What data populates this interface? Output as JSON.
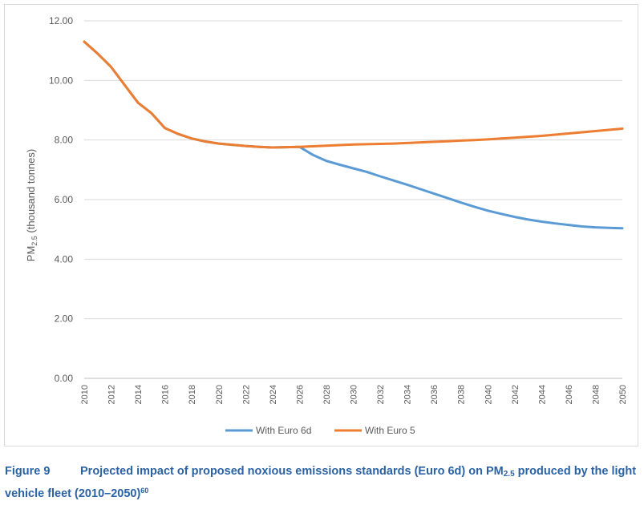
{
  "chart_data": {
    "type": "line",
    "ylabel_main": "PM",
    "ylabel_sub": "2.5",
    "ylabel_rest": " (thousand tonnes)",
    "xlabel": "",
    "ylim": [
      0,
      12
    ],
    "y_ticks": [
      "0.00",
      "2.00",
      "4.00",
      "6.00",
      "8.00",
      "10.00",
      "12.00"
    ],
    "x": [
      2010,
      2011,
      2012,
      2013,
      2014,
      2015,
      2016,
      2017,
      2018,
      2019,
      2020,
      2021,
      2022,
      2023,
      2024,
      2025,
      2026,
      2027,
      2028,
      2029,
      2030,
      2031,
      2032,
      2033,
      2034,
      2035,
      2036,
      2037,
      2038,
      2039,
      2040,
      2041,
      2042,
      2043,
      2044,
      2045,
      2046,
      2047,
      2048,
      2049,
      2050
    ],
    "x_tick_labels": [
      "2010",
      "2012",
      "2014",
      "2016",
      "2018",
      "2020",
      "2022",
      "2024",
      "2026",
      "2028",
      "2030",
      "2032",
      "2034",
      "2036",
      "2038",
      "2040",
      "2042",
      "2044",
      "2046",
      "2048",
      "2050"
    ],
    "grid": true,
    "legend_position": "bottom",
    "series": [
      {
        "name": "With Euro 6d",
        "color": "#5b9bd5",
        "values": [
          11.3,
          10.9,
          10.45,
          9.85,
          9.25,
          8.9,
          8.4,
          8.2,
          8.05,
          7.95,
          7.88,
          7.84,
          7.8,
          7.77,
          7.75,
          7.76,
          7.77,
          7.5,
          7.3,
          7.17,
          7.05,
          6.93,
          6.78,
          6.64,
          6.5,
          6.35,
          6.2,
          6.05,
          5.9,
          5.76,
          5.63,
          5.52,
          5.42,
          5.33,
          5.26,
          5.2,
          5.15,
          5.1,
          5.07,
          5.05,
          5.04
        ]
      },
      {
        "name": "With Euro 5",
        "color": "#ed7d31",
        "values": [
          11.3,
          10.9,
          10.45,
          9.85,
          9.25,
          8.9,
          8.4,
          8.2,
          8.05,
          7.95,
          7.88,
          7.84,
          7.8,
          7.77,
          7.75,
          7.76,
          7.77,
          7.79,
          7.81,
          7.83,
          7.85,
          7.86,
          7.87,
          7.88,
          7.9,
          7.92,
          7.94,
          7.96,
          7.98,
          8.0,
          8.02,
          8.05,
          8.08,
          8.11,
          8.14,
          8.18,
          8.22,
          8.26,
          8.3,
          8.34,
          8.38
        ]
      }
    ]
  },
  "caption": {
    "figure_label": "Figure 9",
    "text_before_sub": "Projected impact of proposed noxious emissions standards (Euro 6d) on PM",
    "sub": "2.5",
    "text_after_sub": " produced by the light vehicle fleet (2010–2050)",
    "sup": "60"
  }
}
